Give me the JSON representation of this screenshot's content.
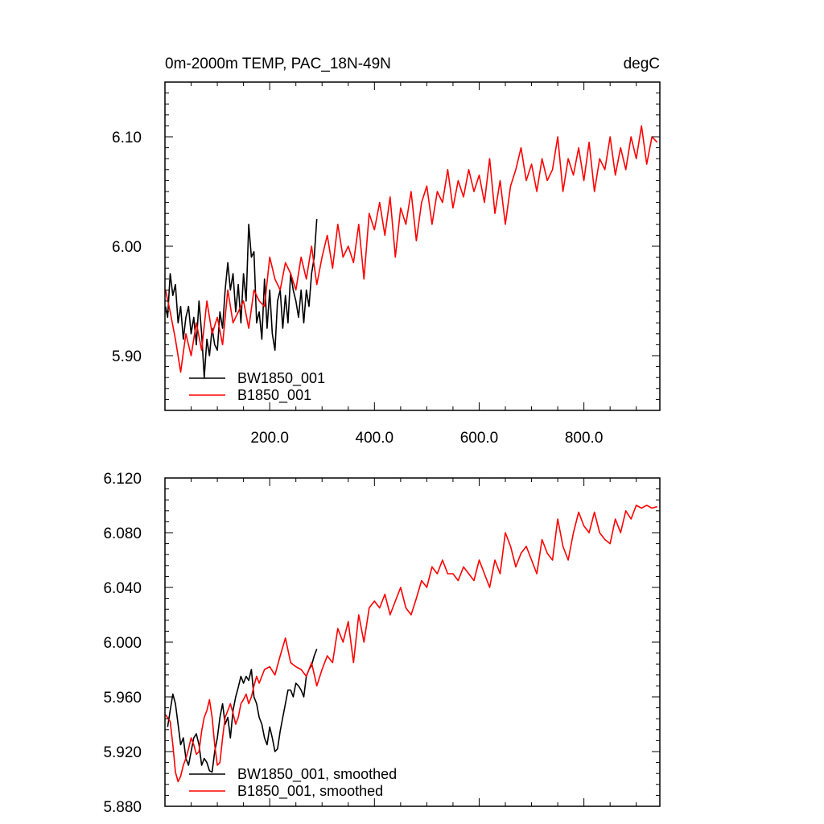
{
  "chart_data": [
    {
      "type": "line",
      "title_left": "0m-2000m TEMP, PAC_18N-49N",
      "title_right": "degC",
      "xlabel": "",
      "ylabel": "",
      "xlim": [
        0,
        945
      ],
      "ylim": [
        5.85,
        6.15
      ],
      "xticks": [
        {
          "value": 200,
          "label": "200.0"
        },
        {
          "value": 400,
          "label": "400.0"
        },
        {
          "value": 600,
          "label": "600.0"
        },
        {
          "value": 800,
          "label": "800.0"
        }
      ],
      "yticks": [
        {
          "value": 5.9,
          "label": "5.90"
        },
        {
          "value": 6.0,
          "label": "6.00"
        },
        {
          "value": 6.1,
          "label": "6.10"
        }
      ],
      "series": [
        {
          "name": "BW1850_001",
          "color": "#000000",
          "x": [
            1,
            5,
            10,
            15,
            20,
            25,
            30,
            35,
            40,
            45,
            50,
            55,
            60,
            65,
            70,
            75,
            80,
            85,
            90,
            95,
            100,
            105,
            110,
            115,
            120,
            125,
            130,
            135,
            140,
            145,
            150,
            155,
            160,
            165,
            170,
            175,
            180,
            185,
            190,
            195,
            200,
            205,
            210,
            215,
            220,
            225,
            230,
            235,
            240,
            245,
            250,
            255,
            260,
            265,
            270,
            275,
            280,
            285,
            290
          ],
          "values": [
            5.945,
            5.935,
            5.975,
            5.955,
            5.965,
            5.93,
            5.945,
            5.915,
            5.935,
            5.945,
            5.92,
            5.935,
            5.91,
            5.95,
            5.92,
            5.88,
            5.915,
            5.9,
            5.925,
            5.91,
            5.905,
            5.94,
            5.925,
            5.96,
            5.985,
            5.96,
            5.975,
            5.94,
            5.965,
            5.93,
            5.975,
            5.95,
            6.02,
            5.99,
            5.995,
            5.93,
            5.94,
            5.915,
            5.97,
            5.925,
            5.96,
            5.92,
            5.905,
            5.95,
            5.96,
            5.925,
            5.955,
            5.93,
            5.975,
            5.96,
            5.95,
            5.935,
            5.96,
            5.93,
            5.96,
            5.945,
            5.975,
            5.99,
            6.025
          ]
        },
        {
          "name": "B1850_001",
          "color": "#ff0000",
          "x": [
            1,
            10,
            20,
            30,
            40,
            50,
            60,
            70,
            80,
            90,
            100,
            110,
            120,
            130,
            140,
            150,
            160,
            170,
            180,
            190,
            200,
            210,
            220,
            230,
            240,
            250,
            260,
            270,
            280,
            290,
            300,
            310,
            320,
            330,
            340,
            350,
            360,
            370,
            380,
            390,
            400,
            410,
            420,
            430,
            440,
            450,
            460,
            470,
            480,
            490,
            500,
            510,
            520,
            530,
            540,
            550,
            560,
            570,
            580,
            590,
            600,
            610,
            620,
            630,
            640,
            650,
            660,
            670,
            680,
            690,
            700,
            710,
            720,
            730,
            740,
            750,
            760,
            770,
            780,
            790,
            800,
            810,
            820,
            830,
            840,
            850,
            860,
            870,
            880,
            890,
            900,
            910,
            920,
            930,
            940
          ],
          "values": [
            5.96,
            5.94,
            5.915,
            5.885,
            5.92,
            5.9,
            5.93,
            5.905,
            5.95,
            5.92,
            5.935,
            5.91,
            5.96,
            5.93,
            5.94,
            5.95,
            5.925,
            5.96,
            5.95,
            5.945,
            5.99,
            5.97,
            5.96,
            5.985,
            5.975,
            5.96,
            5.99,
            5.97,
            6.0,
            5.965,
            5.99,
            6.01,
            5.98,
            6.02,
            5.99,
            6.0,
            5.985,
            6.02,
            5.97,
            6.03,
            6.015,
            6.04,
            6.01,
            6.045,
            5.99,
            6.035,
            6.02,
            6.05,
            6.005,
            6.04,
            6.055,
            6.02,
            6.05,
            6.04,
            6.07,
            6.035,
            6.06,
            6.045,
            6.07,
            6.05,
            6.065,
            6.04,
            6.08,
            6.03,
            6.06,
            6.02,
            6.055,
            6.07,
            6.09,
            6.06,
            6.075,
            6.05,
            6.08,
            6.06,
            6.07,
            6.1,
            6.05,
            6.08,
            6.065,
            6.09,
            6.06,
            6.095,
            6.05,
            6.08,
            6.07,
            6.1,
            6.065,
            6.09,
            6.07,
            6.1,
            6.08,
            6.11,
            6.075,
            6.1,
            6.095
          ]
        }
      ],
      "legend": {
        "position": "bottom-left",
        "entries": [
          "BW1850_001",
          "B1850_001"
        ]
      }
    },
    {
      "type": "line",
      "title": "",
      "xlabel": "",
      "ylabel": "",
      "xlim": [
        0,
        945
      ],
      "ylim": [
        5.88,
        6.12
      ],
      "xticks": [
        {
          "value": 200,
          "label": ""
        },
        {
          "value": 400,
          "label": ""
        },
        {
          "value": 600,
          "label": ""
        },
        {
          "value": 800,
          "label": ""
        }
      ],
      "yticks": [
        {
          "value": 5.88,
          "label": "5.880"
        },
        {
          "value": 5.92,
          "label": "5.920"
        },
        {
          "value": 5.96,
          "label": "5.960"
        },
        {
          "value": 6.0,
          "label": "6.000"
        },
        {
          "value": 6.04,
          "label": "6.040"
        },
        {
          "value": 6.08,
          "label": "6.080"
        },
        {
          "value": 6.12,
          "label": "6.120"
        }
      ],
      "series": [
        {
          "name": "BW1850_001, smoothed",
          "color": "#000000",
          "x": [
            5,
            10,
            15,
            20,
            25,
            30,
            35,
            40,
            45,
            50,
            55,
            60,
            65,
            70,
            75,
            80,
            85,
            90,
            95,
            100,
            105,
            110,
            115,
            120,
            125,
            130,
            135,
            140,
            145,
            150,
            155,
            160,
            165,
            170,
            175,
            180,
            185,
            190,
            195,
            200,
            205,
            210,
            215,
            220,
            225,
            230,
            235,
            240,
            245,
            250,
            255,
            260,
            265,
            270,
            275,
            280,
            285,
            290
          ],
          "values": [
            5.938,
            5.95,
            5.962,
            5.955,
            5.94,
            5.925,
            5.93,
            5.915,
            5.91,
            5.92,
            5.93,
            5.933,
            5.925,
            5.91,
            5.915,
            5.912,
            5.906,
            5.905,
            5.92,
            5.93,
            5.945,
            5.955,
            5.94,
            5.945,
            5.93,
            5.95,
            5.96,
            5.967,
            5.975,
            5.97,
            5.975,
            5.972,
            5.98,
            5.96,
            5.955,
            5.945,
            5.94,
            5.93,
            5.925,
            5.938,
            5.93,
            5.92,
            5.922,
            5.935,
            5.945,
            5.955,
            5.965,
            5.965,
            5.96,
            5.97,
            5.968,
            5.965,
            5.96,
            5.975,
            5.98,
            5.983,
            5.99,
            5.995
          ]
        },
        {
          "name": "B1850_001, smoothed",
          "color": "#ff0000",
          "x": [
            1,
            10,
            15,
            20,
            25,
            30,
            35,
            40,
            45,
            50,
            55,
            60,
            65,
            70,
            75,
            80,
            85,
            90,
            95,
            100,
            105,
            110,
            115,
            120,
            125,
            130,
            135,
            140,
            145,
            150,
            155,
            160,
            165,
            170,
            175,
            180,
            190,
            200,
            210,
            220,
            230,
            240,
            250,
            260,
            270,
            280,
            290,
            300,
            310,
            320,
            330,
            340,
            350,
            360,
            370,
            380,
            390,
            400,
            410,
            420,
            430,
            440,
            450,
            460,
            470,
            480,
            490,
            500,
            510,
            520,
            530,
            540,
            550,
            560,
            570,
            580,
            590,
            600,
            610,
            620,
            630,
            640,
            650,
            660,
            670,
            680,
            690,
            700,
            710,
            720,
            730,
            740,
            750,
            760,
            770,
            780,
            790,
            800,
            810,
            820,
            830,
            840,
            850,
            860,
            870,
            880,
            890,
            900,
            910,
            920,
            930,
            940
          ],
          "values": [
            5.947,
            5.942,
            5.925,
            5.905,
            5.898,
            5.902,
            5.91,
            5.915,
            5.922,
            5.93,
            5.925,
            5.918,
            5.92,
            5.935,
            5.945,
            5.95,
            5.958,
            5.945,
            5.925,
            5.91,
            5.912,
            5.93,
            5.945,
            5.95,
            5.955,
            5.948,
            5.94,
            5.945,
            5.955,
            5.958,
            5.962,
            5.955,
            5.96,
            5.968,
            5.975,
            5.97,
            5.98,
            5.982,
            5.976,
            5.99,
            6.003,
            5.985,
            5.982,
            5.98,
            5.975,
            5.985,
            5.968,
            5.98,
            5.99,
            5.985,
            6.01,
            6.0,
            6.015,
            5.985,
            6.02,
            6.0,
            6.025,
            6.03,
            6.025,
            6.035,
            6.02,
            6.03,
            6.04,
            6.025,
            6.02,
            6.032,
            6.045,
            6.04,
            6.055,
            6.05,
            6.06,
            6.05,
            6.05,
            6.045,
            6.055,
            6.05,
            6.045,
            6.06,
            6.05,
            6.04,
            6.06,
            6.05,
            6.08,
            6.07,
            6.055,
            6.065,
            6.07,
            6.06,
            6.05,
            6.075,
            6.065,
            6.06,
            6.09,
            6.07,
            6.06,
            6.08,
            6.095,
            6.085,
            6.08,
            6.095,
            6.08,
            6.075,
            6.072,
            6.09,
            6.08,
            6.096,
            6.09,
            6.1,
            6.098,
            6.1,
            6.098,
            6.099
          ]
        }
      ],
      "legend": {
        "position": "bottom-left",
        "entries": [
          "BW1850_001, smoothed",
          "B1850_001, smoothed"
        ]
      }
    }
  ]
}
